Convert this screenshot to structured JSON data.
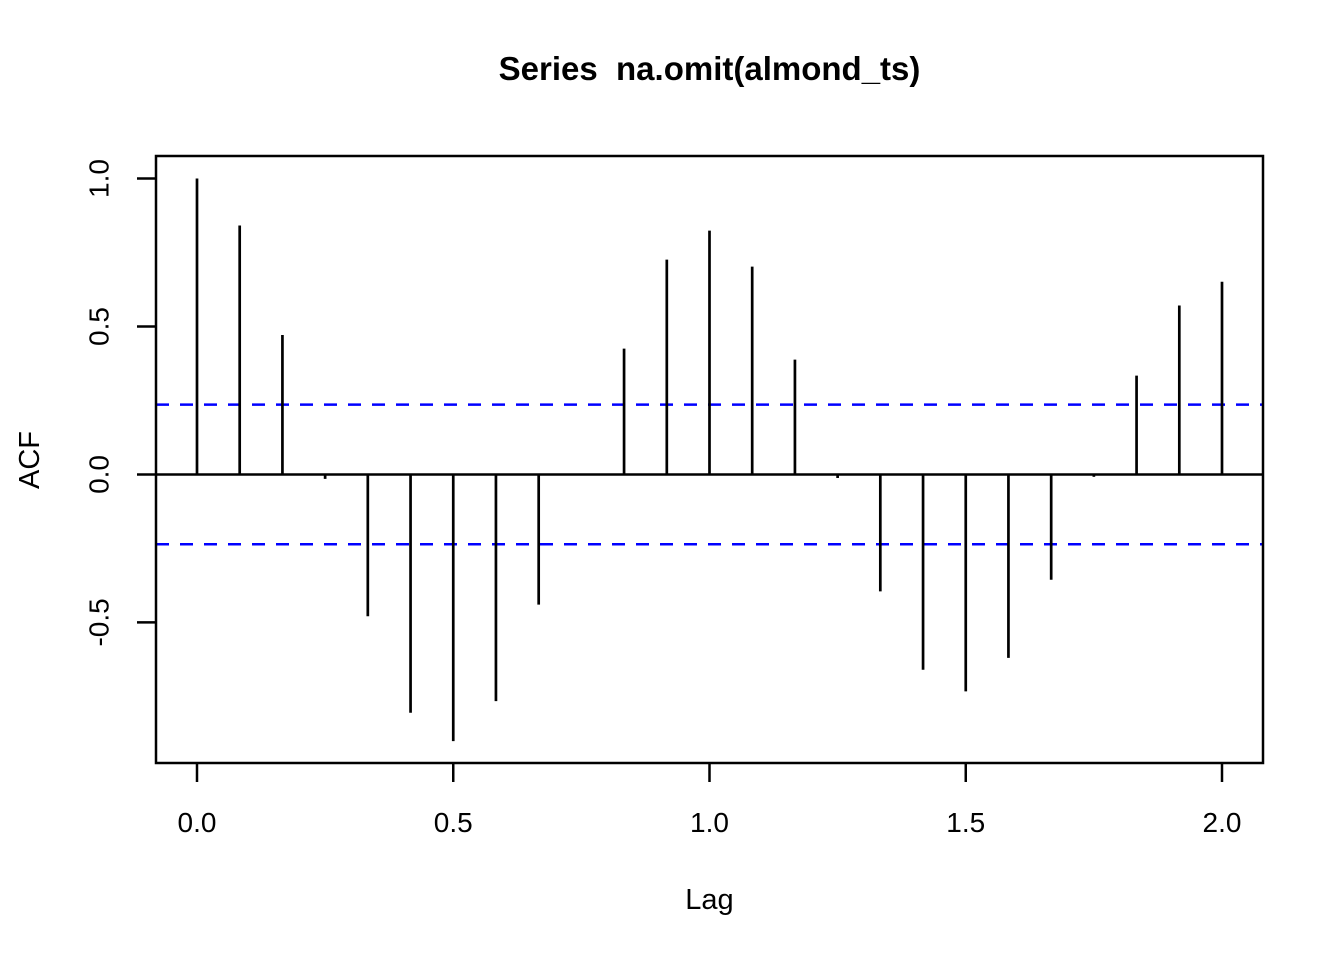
{
  "figure": {
    "background": "#ffffff"
  },
  "chart_data": {
    "type": "bar",
    "subtype": "acf-stem-plot",
    "title": "Series  na.omit(almond_ts)",
    "xlabel": "Lag",
    "ylabel": "ACF",
    "x": [
      0,
      0.0833,
      0.1667,
      0.25,
      0.3333,
      0.4167,
      0.5,
      0.5833,
      0.6667,
      0.75,
      0.8333,
      0.9167,
      1,
      1.0833,
      1.1667,
      1.25,
      1.3333,
      1.4167,
      1.5,
      1.5833,
      1.6667,
      1.75,
      1.8333,
      1.9167,
      2
    ],
    "values": [
      1.0,
      0.841,
      0.471,
      -0.015,
      -0.479,
      -0.805,
      -0.901,
      -0.766,
      -0.44,
      0.002,
      0.425,
      0.726,
      0.824,
      0.702,
      0.388,
      -0.012,
      -0.395,
      -0.66,
      -0.733,
      -0.62,
      -0.356,
      -0.008,
      0.334,
      0.571,
      0.651
    ],
    "confidence_bounds": [
      0.236,
      -0.236
    ],
    "xlim": [
      -0.08,
      2.08
    ],
    "ylim": [
      -0.975,
      1.076
    ],
    "xticks": {
      "values": [
        0,
        0.5,
        1,
        1.5,
        2
      ],
      "labels": [
        "0.0",
        "0.5",
        "1.0",
        "1.5",
        "2.0"
      ]
    },
    "yticks": {
      "values": [
        1,
        0.5,
        0,
        -0.5
      ],
      "labels": [
        "1.0",
        "0.5",
        "0.0",
        "-0.5"
      ]
    },
    "grid": false,
    "legend": null,
    "colors": {
      "spike": "#000000",
      "axis": "#000000",
      "ci_line": "#0000ff",
      "background": "#ffffff"
    }
  }
}
